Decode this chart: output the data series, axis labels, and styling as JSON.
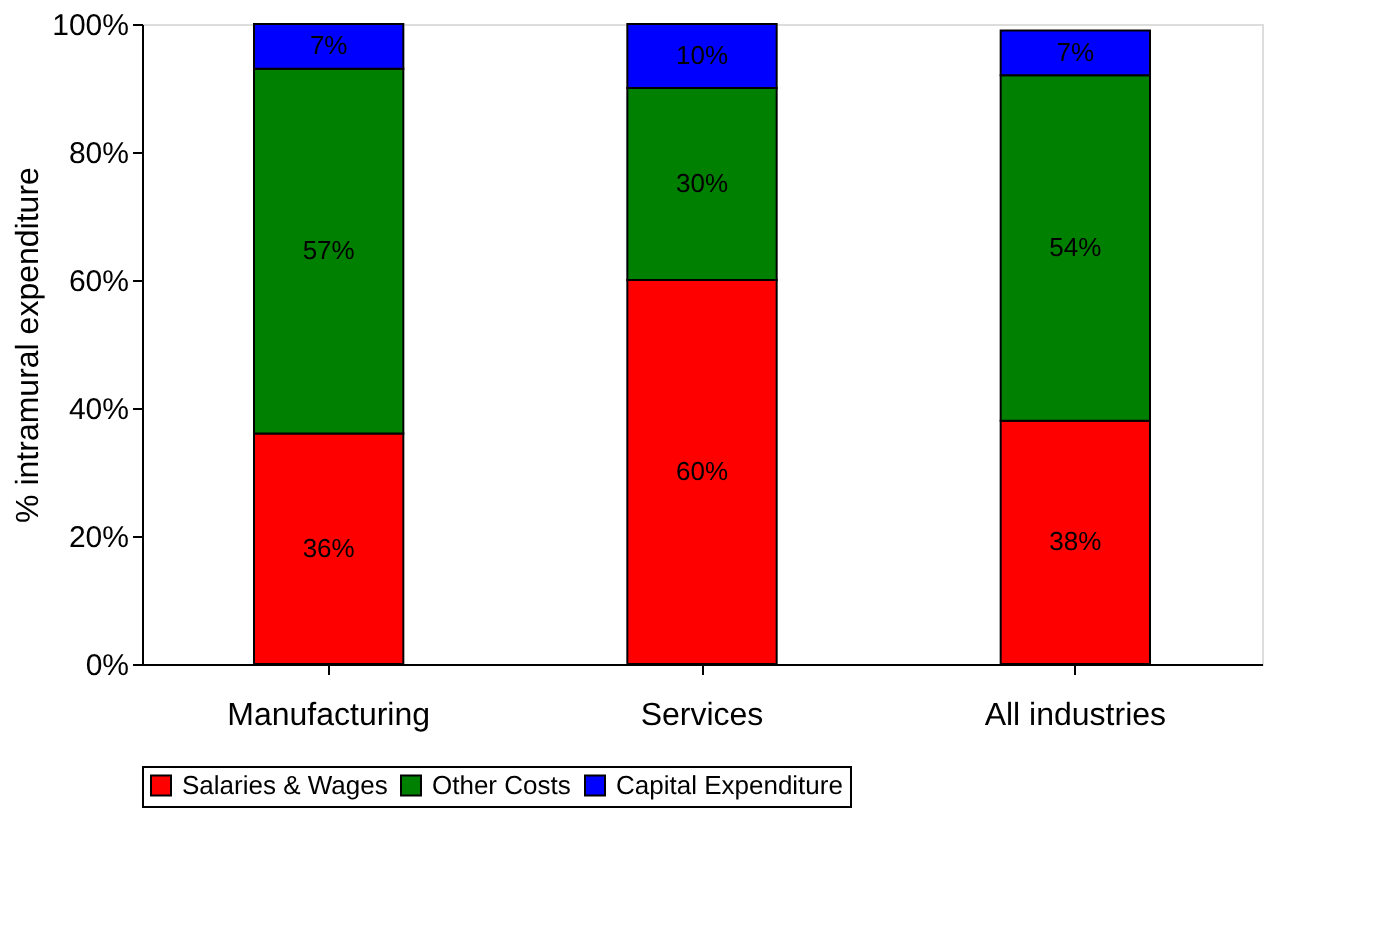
{
  "chart_data": {
    "type": "bar",
    "stacked": true,
    "ylabel": "% intramural expenditure",
    "categories": [
      "Manufacturing",
      "Services",
      "All industries"
    ],
    "series": [
      {
        "name": "Salaries & Wages",
        "color": "#ff0000",
        "values": [
          36,
          60,
          38
        ],
        "value_labels": [
          "36%",
          "60%",
          "38%"
        ]
      },
      {
        "name": "Other Costs",
        "color": "#008000",
        "values": [
          57,
          30,
          54
        ],
        "value_labels": [
          "57%",
          "30%",
          "54%"
        ]
      },
      {
        "name": "Capital Expenditure",
        "color": "#0000ff",
        "values": [
          7,
          10,
          7
        ],
        "value_labels": [
          "7%",
          "10%",
          "7%"
        ]
      }
    ],
    "ylim": [
      0,
      100
    ],
    "yticks": [
      {
        "value": 0,
        "label": "0%"
      },
      {
        "value": 20,
        "label": "20%"
      },
      {
        "value": 40,
        "label": "40%"
      },
      {
        "value": 60,
        "label": "60%"
      },
      {
        "value": 80,
        "label": "80%"
      },
      {
        "value": 100,
        "label": "100%"
      }
    ],
    "grid": false,
    "legend": "bottom"
  }
}
